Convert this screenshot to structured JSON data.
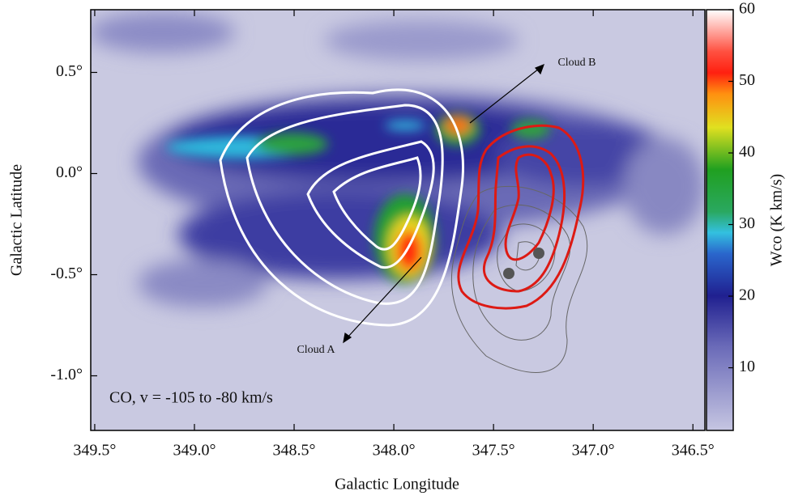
{
  "chart_data": {
    "type": "image",
    "xlabel": "Galactic Longitude",
    "ylabel": "Galactic Latitude",
    "xlim": [
      349.52,
      346.44
    ],
    "ylim": [
      -1.27,
      0.81
    ],
    "xticks": [
      {
        "value": 349.5,
        "label": "349.5°"
      },
      {
        "value": 349.0,
        "label": "349.0°"
      },
      {
        "value": 348.5,
        "label": "348.5°"
      },
      {
        "value": 348.0,
        "label": "348.0°"
      },
      {
        "value": 347.5,
        "label": "347.5°"
      },
      {
        "value": 347.0,
        "label": "347.0°"
      },
      {
        "value": 346.5,
        "label": "346.5°"
      }
    ],
    "yticks": [
      {
        "value": 0.5,
        "label": "0.5°"
      },
      {
        "value": 0.0,
        "label": "0.0°"
      },
      {
        "value": -0.5,
        "label": "-0.5°"
      },
      {
        "value": -1.0,
        "label": "-1.0°"
      }
    ],
    "colorbar": {
      "label": "Wco (K km/s)",
      "clim": [
        1.25,
        60
      ],
      "ticks": [
        10,
        20,
        30,
        40,
        50,
        60
      ]
    },
    "annotations": [
      "CO, v = -105 to -80 km/s",
      "Cloud A",
      "Cloud B"
    ]
  }
}
